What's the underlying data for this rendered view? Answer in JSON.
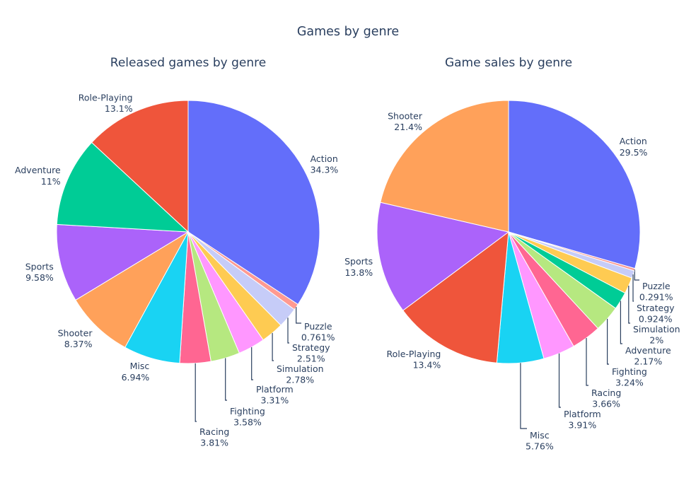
{
  "title": "Games by genre",
  "chart_data": [
    {
      "type": "pie",
      "title": "Released games by genre",
      "slices": [
        {
          "label": "Action",
          "percent": 34.3,
          "percent_text": "34.3%",
          "color": "#636efa",
          "label_mode": "outside"
        },
        {
          "label": "Puzzle",
          "percent": 0.761,
          "percent_text": "0.761%",
          "color": "#ff9a91",
          "label_mode": "callout"
        },
        {
          "label": "Strategy",
          "percent": 2.51,
          "percent_text": "2.51%",
          "color": "#c6ccf8",
          "label_mode": "callout"
        },
        {
          "label": "Simulation",
          "percent": 2.78,
          "percent_text": "2.78%",
          "color": "#fecb52",
          "label_mode": "callout"
        },
        {
          "label": "Platform",
          "percent": 3.31,
          "percent_text": "3.31%",
          "color": "#ff97ff",
          "label_mode": "callout"
        },
        {
          "label": "Fighting",
          "percent": 3.58,
          "percent_text": "3.58%",
          "color": "#b6e880",
          "label_mode": "callout"
        },
        {
          "label": "Racing",
          "percent": 3.81,
          "percent_text": "3.81%",
          "color": "#ff6692",
          "label_mode": "callout"
        },
        {
          "label": "Misc",
          "percent": 6.94,
          "percent_text": "6.94%",
          "color": "#19d3f3",
          "label_mode": "outside"
        },
        {
          "label": "Shooter",
          "percent": 8.37,
          "percent_text": "8.37%",
          "color": "#ffa15a",
          "label_mode": "outside"
        },
        {
          "label": "Sports",
          "percent": 9.58,
          "percent_text": "9.58%",
          "color": "#ab63fa",
          "label_mode": "outside"
        },
        {
          "label": "Adventure",
          "percent": 11,
          "percent_text": "11%",
          "color": "#00cc96",
          "label_mode": "outside"
        },
        {
          "label": "Role-Playing",
          "percent": 13.1,
          "percent_text": "13.1%",
          "color": "#ef553b",
          "label_mode": "outside"
        }
      ]
    },
    {
      "type": "pie",
      "title": "Game sales by genre",
      "slices": [
        {
          "label": "Action",
          "percent": 29.5,
          "percent_text": "29.5%",
          "color": "#636efa",
          "label_mode": "outside"
        },
        {
          "label": "Puzzle",
          "percent": 0.291,
          "percent_text": "0.291%",
          "color": "#ff9a91",
          "label_mode": "callout"
        },
        {
          "label": "Strategy",
          "percent": 0.924,
          "percent_text": "0.924%",
          "color": "#c6ccf8",
          "label_mode": "callout"
        },
        {
          "label": "Simulation",
          "percent": 2,
          "percent_text": "2%",
          "color": "#fecb52",
          "label_mode": "callout"
        },
        {
          "label": "Adventure",
          "percent": 2.17,
          "percent_text": "2.17%",
          "color": "#00cc96",
          "label_mode": "callout"
        },
        {
          "label": "Fighting",
          "percent": 3.24,
          "percent_text": "3.24%",
          "color": "#b6e880",
          "label_mode": "callout"
        },
        {
          "label": "Racing",
          "percent": 3.66,
          "percent_text": "3.66%",
          "color": "#ff6692",
          "label_mode": "callout"
        },
        {
          "label": "Platform",
          "percent": 3.91,
          "percent_text": "3.91%",
          "color": "#ff97ff",
          "label_mode": "callout"
        },
        {
          "label": "Misc",
          "percent": 5.76,
          "percent_text": "5.76%",
          "color": "#19d3f3",
          "label_mode": "callout"
        },
        {
          "label": "Role-Playing",
          "percent": 13.4,
          "percent_text": "13.4%",
          "color": "#ef553b",
          "label_mode": "outside"
        },
        {
          "label": "Sports",
          "percent": 13.8,
          "percent_text": "13.8%",
          "color": "#ab63fa",
          "label_mode": "outside"
        },
        {
          "label": "Shooter",
          "percent": 21.4,
          "percent_text": "21.4%",
          "color": "#ffa15a",
          "label_mode": "outside"
        }
      ]
    }
  ]
}
